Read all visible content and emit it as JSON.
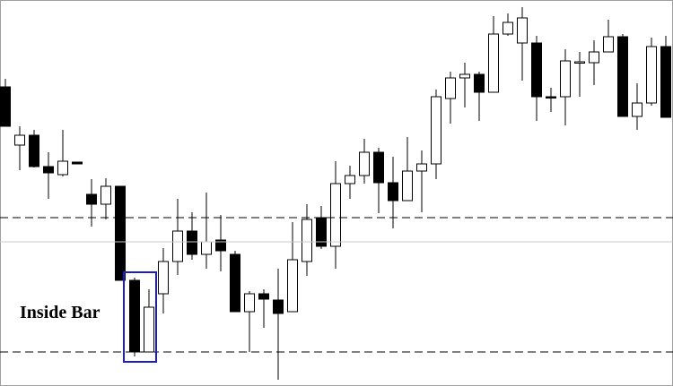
{
  "chart_data": {
    "type": "candlestick",
    "annotation": "Inside Bar",
    "open": [
      334,
      269,
      280,
      245,
      236,
      250,
      214,
      203,
      223,
      118,
      38,
      103,
      139,
      173,
      147,
      163,
      147,
      83,
      103,
      96,
      83,
      139,
      188,
      156,
      226,
      235,
      261,
      227,
      207,
      240,
      248,
      321,
      344,
      348,
      328,
      393,
      383,
      383,
      323,
      323,
      361,
      361,
      373,
      390,
      301,
      316,
      379
    ],
    "high": [
      343,
      290,
      286,
      261,
      286,
      250,
      231,
      232,
      223,
      121,
      108,
      154,
      209,
      194,
      216,
      191,
      151,
      106,
      108,
      131,
      183,
      203,
      201,
      251,
      246,
      276,
      266,
      256,
      278,
      263,
      331,
      351,
      361,
      351,
      413,
      416,
      423,
      391,
      333,
      376,
      373,
      386,
      409,
      393,
      338,
      389,
      391
    ],
    "low": [
      290,
      241,
      244,
      209,
      234,
      248,
      178,
      186,
      118,
      33,
      38,
      81,
      124,
      141,
      131,
      128,
      83,
      38,
      65,
      7,
      83,
      123,
      153,
      131,
      209,
      226,
      193,
      176,
      207,
      194,
      231,
      293,
      311,
      296,
      328,
      391,
      341,
      296,
      306,
      291,
      323,
      336,
      373,
      301,
      286,
      313,
      300
    ],
    "close": [
      290,
      280,
      245,
      238,
      251,
      248,
      203,
      223,
      118,
      38,
      88,
      139,
      173,
      147,
      161,
      151,
      83,
      103,
      97,
      81,
      141,
      186,
      156,
      226,
      235,
      261,
      227,
      207,
      240,
      248,
      323,
      344,
      348,
      328,
      393,
      406,
      411,
      323,
      322,
      363,
      362,
      373,
      390,
      301,
      316,
      379,
      300
    ],
    "ylim": [
      0,
      431
    ],
    "levels": [
      188,
      38
    ],
    "mid_level": 161,
    "up_color": "#ffffff",
    "down_color": "#000000"
  }
}
